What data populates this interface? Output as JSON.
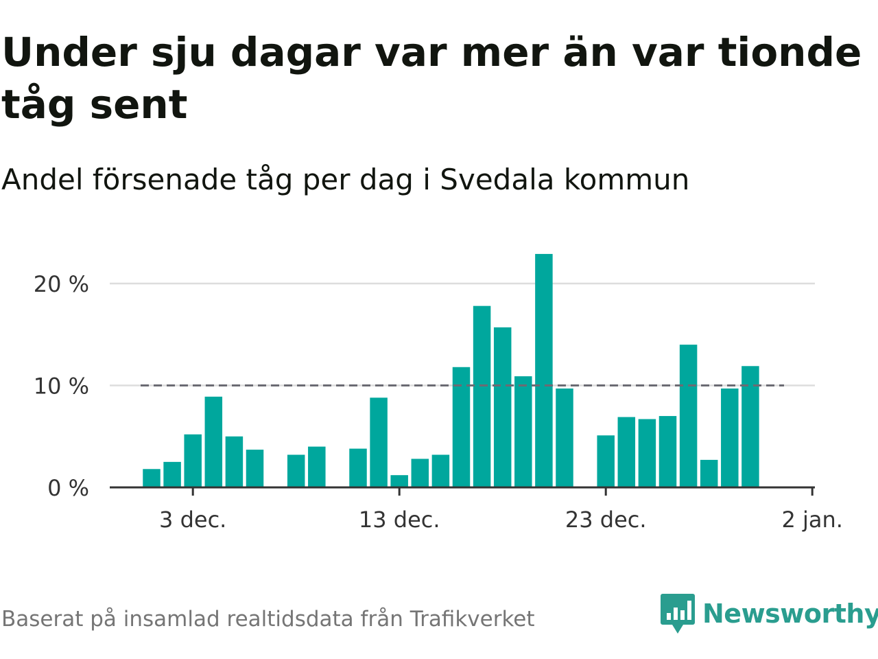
{
  "header": {
    "title": "Under sju dagar var mer än var tionde tåg sent",
    "subtitle": "Andel försenade tåg per dag i Svedala kommun"
  },
  "footer": {
    "source": "Baserat på insamlad realtidsdata från Trafikverket",
    "brand": "Newsworthy"
  },
  "colors": {
    "bar": "#00a79d",
    "reference_line": "#6b6b73",
    "grid": "#dddddd",
    "axis": "#333333",
    "brand": "#2a9d8f"
  },
  "icons": {
    "brand_logo": "newsworthy-bar-chart-speech-bubble-icon"
  },
  "chart_data": {
    "type": "bar",
    "x_start": "2022-12-01",
    "x_tick_labels": [
      "3 dec.",
      "13 dec.",
      "23 dec.",
      "2 jan."
    ],
    "y_tick_labels": [
      "0 %",
      "10 %",
      "20 %"
    ],
    "ylim": [
      0,
      20
    ],
    "reference_line": 10,
    "dates": [
      "2022-12-01",
      "2022-12-02",
      "2022-12-03",
      "2022-12-04",
      "2022-12-05",
      "2022-12-06",
      "2022-12-07",
      "2022-12-08",
      "2022-12-09",
      "2022-12-10",
      "2022-12-11",
      "2022-12-12",
      "2022-12-13",
      "2022-12-14",
      "2022-12-15",
      "2022-12-16",
      "2022-12-17",
      "2022-12-18",
      "2022-12-19",
      "2022-12-20",
      "2022-12-21",
      "2022-12-22",
      "2022-12-23",
      "2022-12-24",
      "2022-12-25",
      "2022-12-26",
      "2022-12-27",
      "2022-12-28",
      "2022-12-29",
      "2022-12-30"
    ],
    "values": [
      1.8,
      2.5,
      5.2,
      8.9,
      5.0,
      3.7,
      null,
      3.2,
      4.0,
      null,
      3.8,
      8.8,
      1.2,
      2.8,
      3.2,
      11.8,
      17.8,
      15.7,
      10.9,
      22.9,
      9.7,
      null,
      5.1,
      6.9,
      6.7,
      7.0,
      14.0,
      2.7,
      9.7,
      11.9
    ],
    "grid": true
  }
}
